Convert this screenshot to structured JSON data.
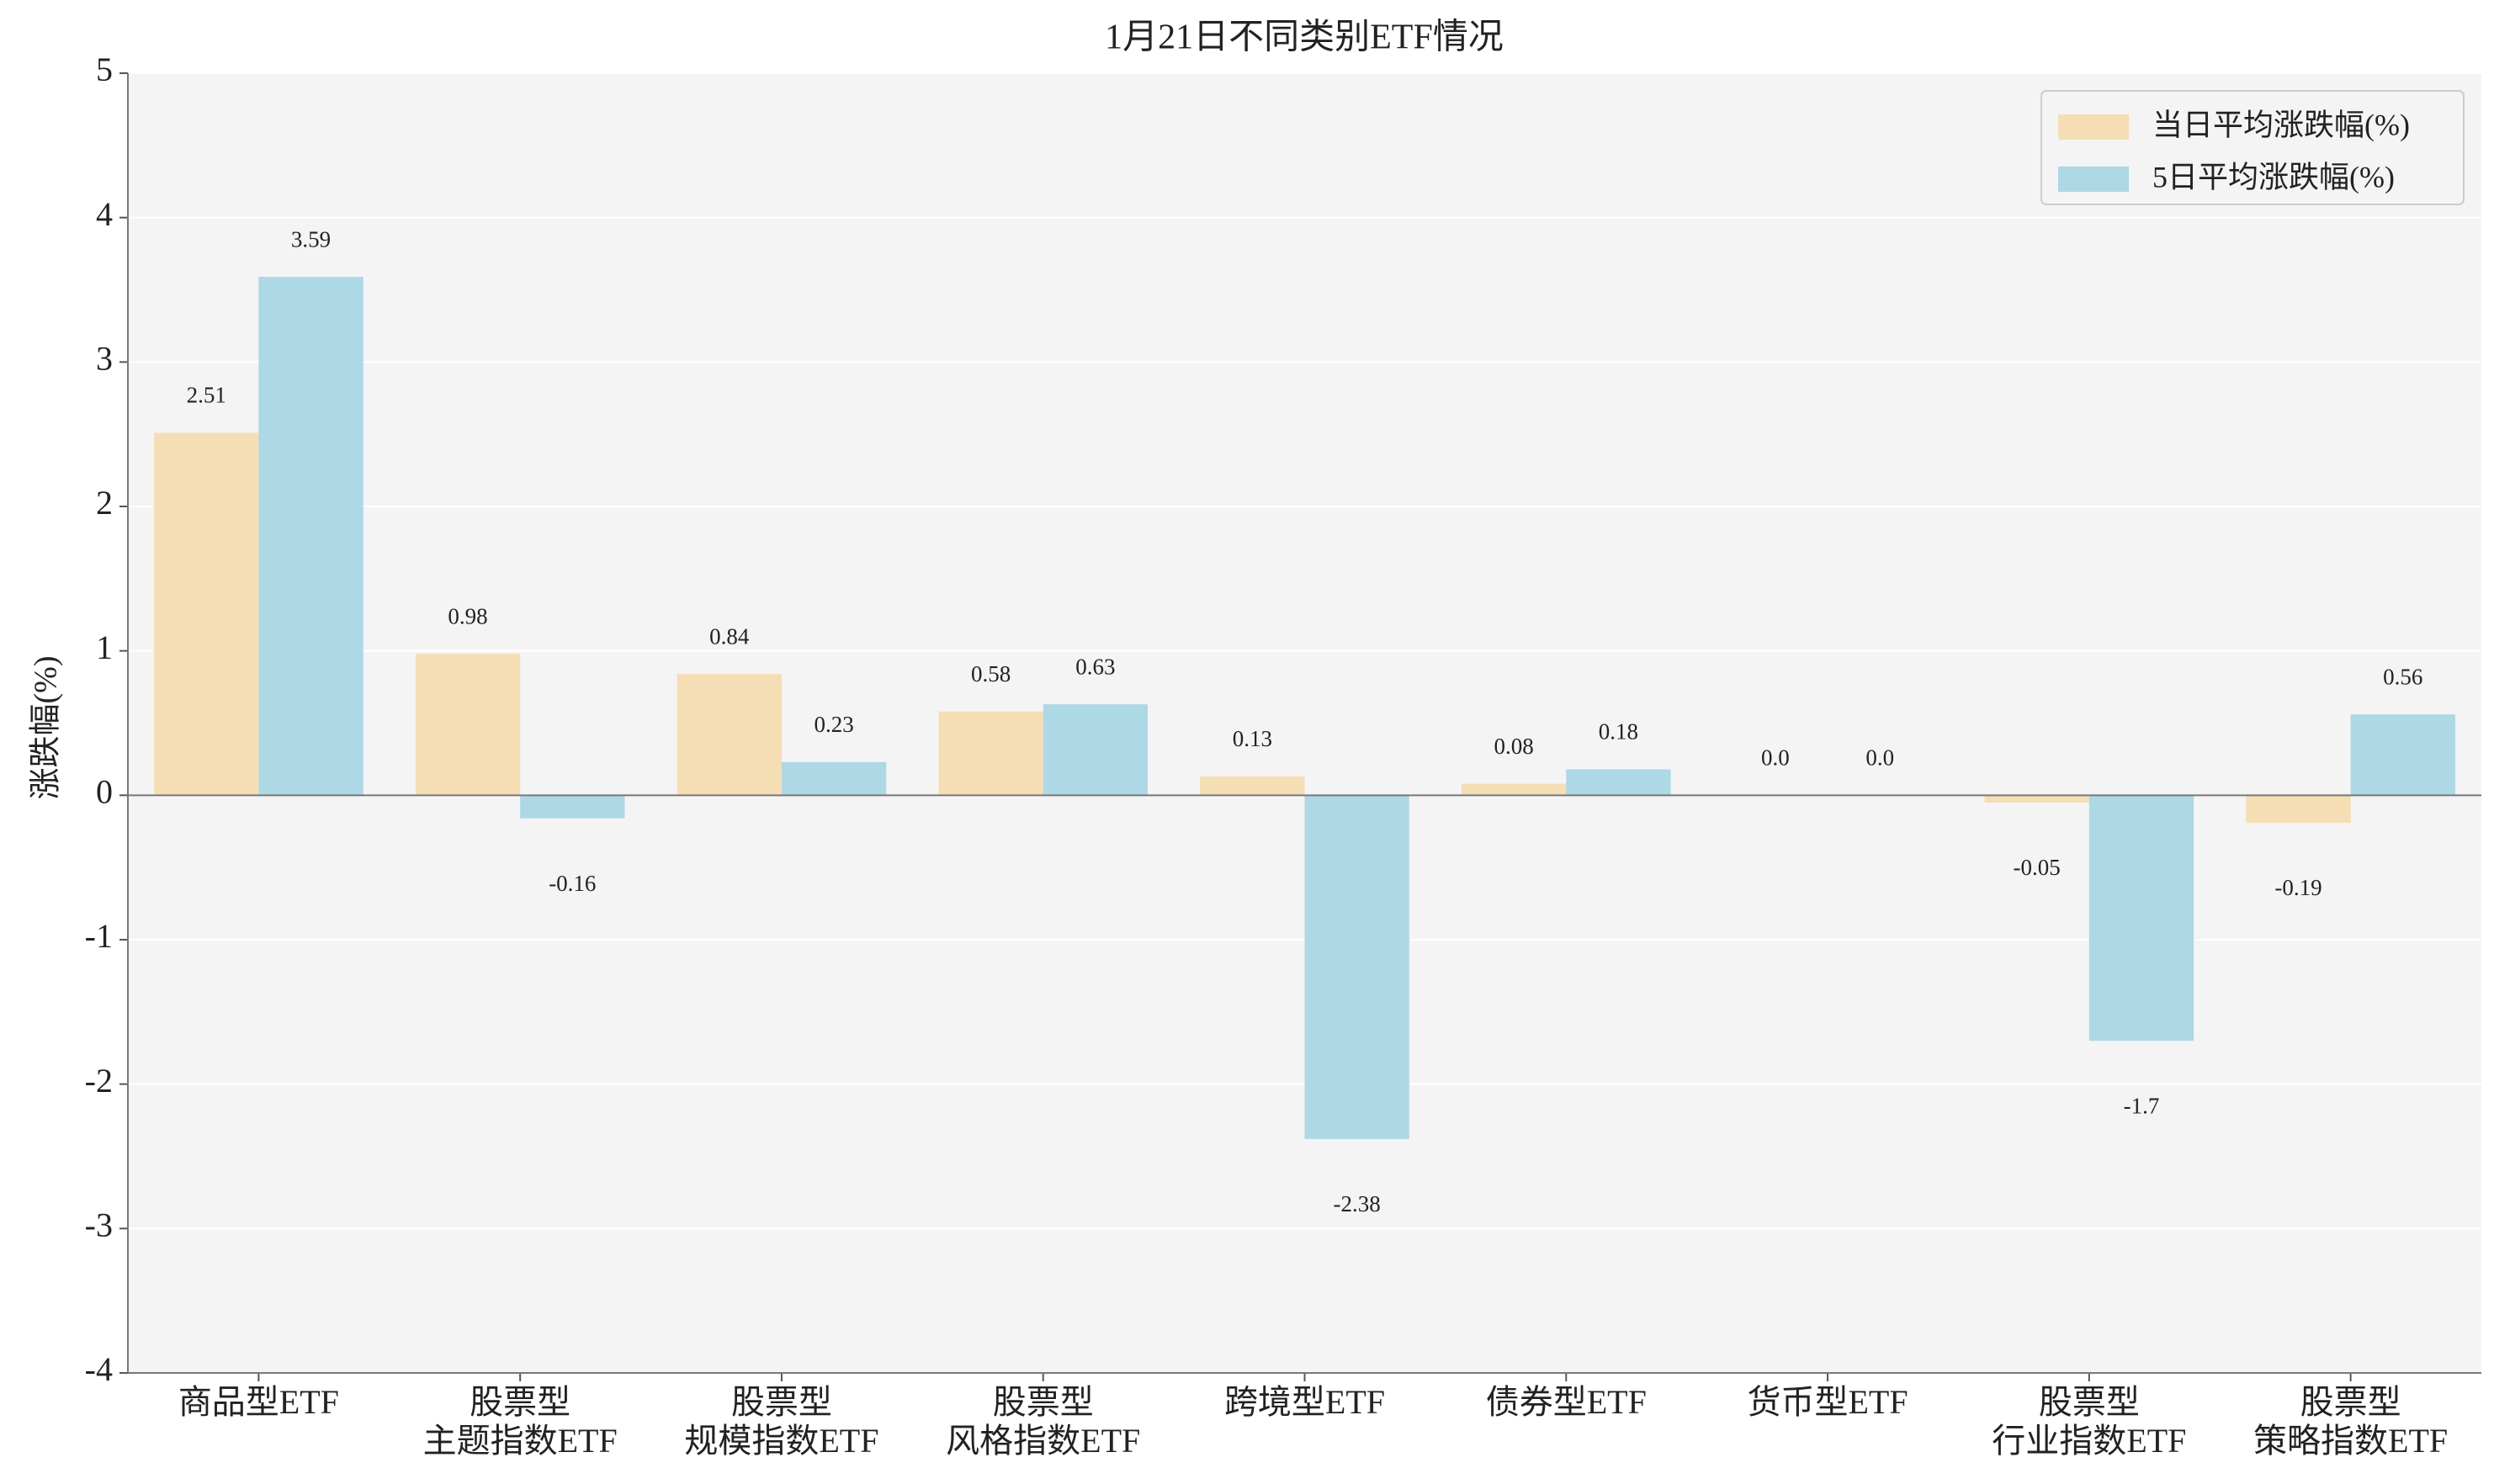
{
  "chart_data": {
    "type": "bar",
    "title": "1月21日不同类别ETF情况",
    "y_label": "涨跌幅(%)",
    "categories": [
      "商品型ETF",
      "股票型\n主题指数ETF",
      "股票型\n规模指数ETF",
      "股票型\n风格指数ETF",
      "跨境型ETF",
      "债券型ETF",
      "货币型ETF",
      "股票型\n行业指数ETF",
      "股票型\n策略指数ETF"
    ],
    "series": [
      {
        "name": "当日平均涨跌幅(%)",
        "color": "#f5deb3",
        "values": [
          2.51,
          0.98,
          0.84,
          0.58,
          0.13,
          0.08,
          0.0,
          -0.05,
          -0.19
        ],
        "value_labels": [
          "2.51",
          "0.98",
          "0.84",
          "0.58",
          "0.13",
          "0.08",
          "0.0",
          "-0.05",
          "-0.19"
        ]
      },
      {
        "name": "5日平均涨跌幅(%)",
        "color": "#add8e6",
        "values": [
          3.59,
          -0.16,
          0.23,
          0.63,
          -2.38,
          0.18,
          0.0,
          -1.7,
          0.56
        ],
        "value_labels": [
          "3.59",
          "-0.16",
          "0.23",
          "0.63",
          "-2.38",
          "0.18",
          "0.0",
          "-1.7",
          "0.56"
        ]
      }
    ],
    "ylim": [
      -4,
      5
    ],
    "yticks": [
      -4,
      -3,
      -2,
      -1,
      0,
      1,
      2,
      3,
      4,
      5
    ],
    "grid": true,
    "legend": "upper right"
  }
}
